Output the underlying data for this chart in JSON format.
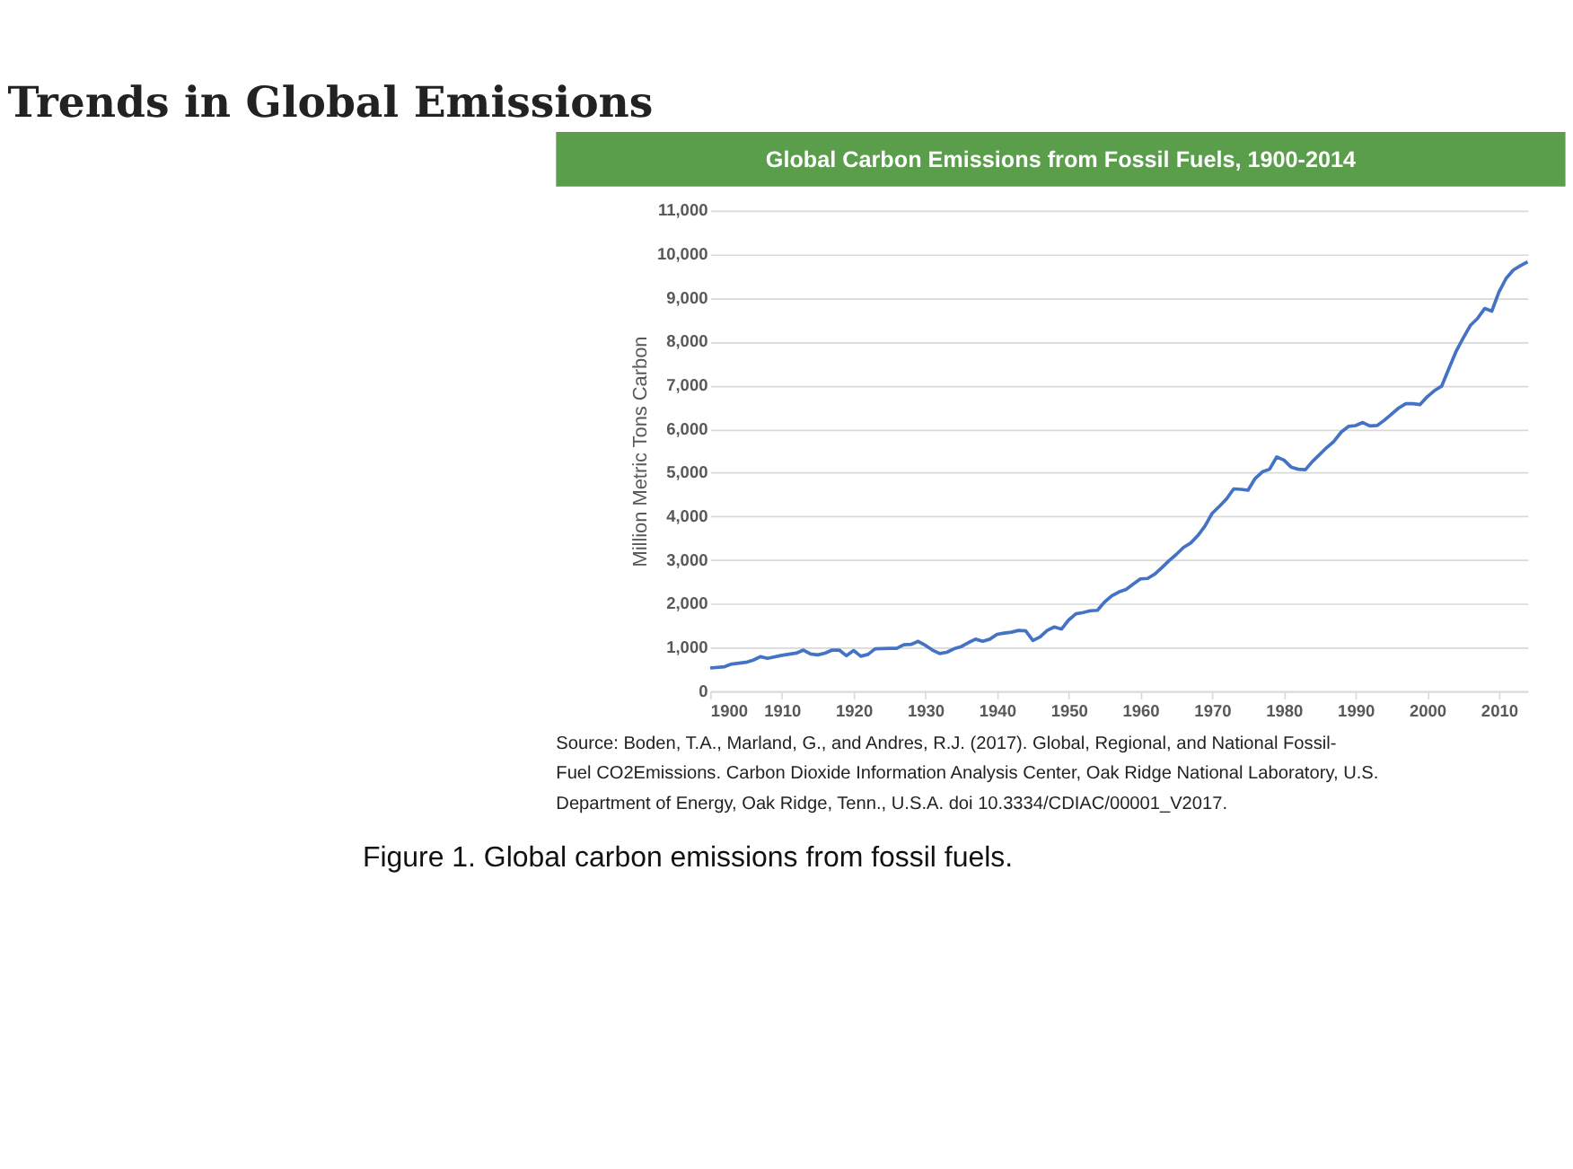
{
  "chart_data": {
    "type": "line",
    "title": "Trends in Global Emissions",
    "subtitle": "Global Carbon Emissions from Fossil Fuels, 1900-2014",
    "ylabel": "Million Metric Tons Carbon",
    "x": [
      1900,
      1902,
      1903,
      1905,
      1906,
      1907,
      1908,
      1910,
      1912,
      1913,
      1914,
      1915,
      1916,
      1917,
      1918,
      1919,
      1920,
      1921,
      1922,
      1923,
      1925,
      1926,
      1927,
      1928,
      1929,
      1930,
      1931,
      1932,
      1933,
      1934,
      1935,
      1936,
      1937,
      1938,
      1939,
      1940,
      1941,
      1942,
      1943,
      1944,
      1945,
      1946,
      1947,
      1948,
      1949,
      1950,
      1951,
      1952,
      1953,
      1954,
      1955,
      1956,
      1957,
      1958,
      1959,
      1960,
      1961,
      1962,
      1963,
      1964,
      1965,
      1966,
      1967,
      1968,
      1969,
      1970,
      1971,
      1972,
      1973,
      1974,
      1975,
      1976,
      1977,
      1978,
      1979,
      1980,
      1981,
      1982,
      1983,
      1984,
      1985,
      1986,
      1987,
      1988,
      1989,
      1990,
      1991,
      1992,
      1993,
      1994,
      1995,
      1996,
      1997,
      1998,
      1999,
      2000,
      2001,
      2002,
      2003,
      2004,
      2005,
      2006,
      2007,
      2008,
      2009,
      2010,
      2011,
      2012,
      2013,
      2014
    ],
    "series": [
      {
        "color": "#4472c4",
        "values": [
          530,
          560,
          620,
          660,
          710,
          790,
          750,
          820,
          870,
          940,
          850,
          830,
          870,
          940,
          940,
          810,
          930,
          800,
          840,
          970,
          980,
          980,
          1060,
          1070,
          1140,
          1050,
          940,
          860,
          890,
          970,
          1020,
          1110,
          1190,
          1140,
          1190,
          1300,
          1330,
          1350,
          1390,
          1380,
          1160,
          1240,
          1390,
          1470,
          1420,
          1630,
          1770,
          1800,
          1840,
          1850,
          2040,
          2180,
          2270,
          2330,
          2450,
          2570,
          2580,
          2680,
          2830,
          2990,
          3130,
          3290,
          3390,
          3560,
          3780,
          4070,
          4230,
          4400,
          4630,
          4620,
          4600,
          4870,
          5020,
          5080,
          5360,
          5290,
          5130,
          5080,
          5070,
          5260,
          5420,
          5580,
          5720,
          5930,
          6060,
          6080,
          6150,
          6070,
          6080,
          6200,
          6340,
          6480,
          6580,
          6580,
          6560,
          6740,
          6880,
          6980,
          7380,
          7770,
          8080,
          8370,
          8530,
          8760,
          8700,
          9140,
          9450,
          9640,
          9740,
          9830
        ]
      }
    ],
    "xlim": [
      1900,
      2014
    ],
    "xticks": [
      1900,
      1910,
      1920,
      1930,
      1940,
      1950,
      1960,
      1970,
      1980,
      1990,
      2000,
      2010
    ],
    "ylim": [
      0,
      11000
    ],
    "yticks": [
      0,
      {
        "value": 1000,
        "label": "1,000"
      },
      {
        "value": 2000,
        "label": "2,000"
      },
      {
        "value": 3000,
        "label": "3,000"
      },
      {
        "value": 4000,
        "label": "4,000"
      },
      {
        "value": 5000,
        "label": "5,000"
      },
      {
        "value": 6000,
        "label": "6,000"
      },
      {
        "value": 7000,
        "label": "7,000"
      },
      {
        "value": 8000,
        "label": "8,000"
      },
      {
        "value": 9000,
        "label": "9,000"
      },
      {
        "value": 10000,
        "label": "10,000"
      },
      {
        "value": 11000,
        "label": "11,000"
      }
    ],
    "grid": "y",
    "marker": "none",
    "line_style": "solid",
    "annotations": [
      "Source: Boden, T.A., Marland, G., and Andres, R.J. (2017). Global, Regional, and National Fossil-Fuel CO2Emissions. Carbon Dioxide Information Analysis Center, Oak Ridge National Laboratory, U.S. Department of Energy, Oak Ridge, Tenn., U.S.A. doi 10.3334/CDIAC/00001_V2017.",
      "Figure 1. Global carbon emissions from fossil fuels."
    ]
  }
}
